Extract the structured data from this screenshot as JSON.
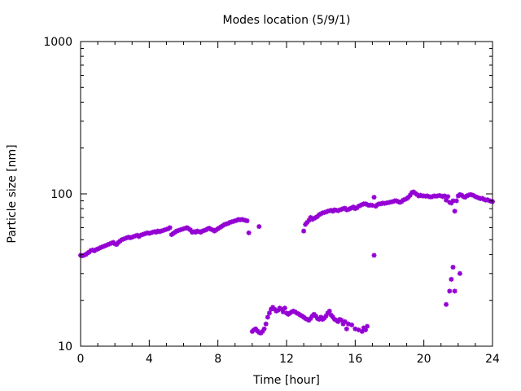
{
  "chart_data": {
    "type": "scatter",
    "title": "Modes location (5/9/1)",
    "xlabel": "Time [hour]",
    "ylabel": "Particle size [nm]",
    "xlim": [
      0,
      24
    ],
    "ylim": [
      10,
      1000
    ],
    "yscale": "log",
    "grid": false,
    "marker": "asterisk",
    "x_ticks": [
      0,
      4,
      8,
      12,
      16,
      20,
      24
    ],
    "x_tick_labels": [
      "0",
      "4",
      "8",
      "12",
      "16",
      "20",
      "24"
    ],
    "y_ticks": [
      10,
      100,
      1000
    ],
    "y_tick_labels": [
      "10",
      "100",
      "1000"
    ],
    "series": [
      {
        "color": "#9400d3",
        "points": [
          [
            0.0,
            39.5
          ],
          [
            0.1,
            39.2
          ],
          [
            0.2,
            39.6
          ],
          [
            0.3,
            40.0
          ],
          [
            0.4,
            40.8
          ],
          [
            0.5,
            41.5
          ],
          [
            0.6,
            42.5
          ],
          [
            0.7,
            42.8
          ],
          [
            0.8,
            42.3
          ],
          [
            0.9,
            43.0
          ],
          [
            1.0,
            43.5
          ],
          [
            1.1,
            44.0
          ],
          [
            1.2,
            44.6
          ],
          [
            1.3,
            45.0
          ],
          [
            1.4,
            45.5
          ],
          [
            1.5,
            46.0
          ],
          [
            1.6,
            46.5
          ],
          [
            1.7,
            47.0
          ],
          [
            1.8,
            47.5
          ],
          [
            1.9,
            48.0
          ],
          [
            2.0,
            47.0
          ],
          [
            2.1,
            46.5
          ],
          [
            2.2,
            48.0
          ],
          [
            2.3,
            49.0
          ],
          [
            2.4,
            50.0
          ],
          [
            2.5,
            50.5
          ],
          [
            2.6,
            51.0
          ],
          [
            2.7,
            51.5
          ],
          [
            2.8,
            52.0
          ],
          [
            2.9,
            51.5
          ],
          [
            3.0,
            52.0
          ],
          [
            3.1,
            52.5
          ],
          [
            3.2,
            53.0
          ],
          [
            3.3,
            53.5
          ],
          [
            3.4,
            52.5
          ],
          [
            3.5,
            53.5
          ],
          [
            3.6,
            54.0
          ],
          [
            3.7,
            54.5
          ],
          [
            3.8,
            55.0
          ],
          [
            3.9,
            55.5
          ],
          [
            4.0,
            55.0
          ],
          [
            4.1,
            55.5
          ],
          [
            4.2,
            56.0
          ],
          [
            4.3,
            56.5
          ],
          [
            4.4,
            56.0
          ],
          [
            4.5,
            57.0
          ],
          [
            4.6,
            56.5
          ],
          [
            4.7,
            57.0
          ],
          [
            4.8,
            57.5
          ],
          [
            4.9,
            58.0
          ],
          [
            5.0,
            58.5
          ],
          [
            5.1,
            59.0
          ],
          [
            5.2,
            60.0
          ],
          [
            5.3,
            54.0
          ],
          [
            5.4,
            55.0
          ],
          [
            5.5,
            56.0
          ],
          [
            5.6,
            57.0
          ],
          [
            5.7,
            57.5
          ],
          [
            5.8,
            58.0
          ],
          [
            5.9,
            58.5
          ],
          [
            6.0,
            59.0
          ],
          [
            6.1,
            59.5
          ],
          [
            6.2,
            60.0
          ],
          [
            6.3,
            59.0
          ],
          [
            6.4,
            58.0
          ],
          [
            6.5,
            56.0
          ],
          [
            6.6,
            56.5
          ],
          [
            6.7,
            56.0
          ],
          [
            6.8,
            57.0
          ],
          [
            6.9,
            56.5
          ],
          [
            7.0,
            56.0
          ],
          [
            7.1,
            57.0
          ],
          [
            7.2,
            57.5
          ],
          [
            7.3,
            58.0
          ],
          [
            7.4,
            59.0
          ],
          [
            7.5,
            59.5
          ],
          [
            7.6,
            58.5
          ],
          [
            7.7,
            58.0
          ],
          [
            7.8,
            57.0
          ],
          [
            7.9,
            58.0
          ],
          [
            8.0,
            59.0
          ],
          [
            8.1,
            60.0
          ],
          [
            8.2,
            61.0
          ],
          [
            8.3,
            62.0
          ],
          [
            8.4,
            63.0
          ],
          [
            8.5,
            63.5
          ],
          [
            8.6,
            64.0
          ],
          [
            8.7,
            65.0
          ],
          [
            8.8,
            65.5
          ],
          [
            8.9,
            66.0
          ],
          [
            9.0,
            66.5
          ],
          [
            9.1,
            67.0
          ],
          [
            9.2,
            68.0
          ],
          [
            9.3,
            67.5
          ],
          [
            9.4,
            68.0
          ],
          [
            9.5,
            67.5
          ],
          [
            9.6,
            67.0
          ],
          [
            9.7,
            66.5
          ],
          [
            9.8,
            55.5
          ],
          [
            10.4,
            61.0
          ],
          [
            10.0,
            12.5
          ],
          [
            10.1,
            12.8
          ],
          [
            10.2,
            13.0
          ],
          [
            10.3,
            12.6
          ],
          [
            10.4,
            12.3
          ],
          [
            10.5,
            12.2
          ],
          [
            10.6,
            12.5
          ],
          [
            10.7,
            13.0
          ],
          [
            10.8,
            14.0
          ],
          [
            10.9,
            15.5
          ],
          [
            11.0,
            16.5
          ],
          [
            11.1,
            17.5
          ],
          [
            11.2,
            18.0
          ],
          [
            11.3,
            17.5
          ],
          [
            11.4,
            17.0
          ],
          [
            11.5,
            17.2
          ],
          [
            11.6,
            17.8
          ],
          [
            11.7,
            17.5
          ],
          [
            11.8,
            16.8
          ],
          [
            11.9,
            17.8
          ],
          [
            12.0,
            16.5
          ],
          [
            12.1,
            16.2
          ],
          [
            12.2,
            16.5
          ],
          [
            12.3,
            16.8
          ],
          [
            12.4,
            17.0
          ],
          [
            12.5,
            16.8
          ],
          [
            12.6,
            16.5
          ],
          [
            12.7,
            16.3
          ],
          [
            12.8,
            16.0
          ],
          [
            12.9,
            15.8
          ],
          [
            13.0,
            15.5
          ],
          [
            13.1,
            15.2
          ],
          [
            13.2,
            15.0
          ],
          [
            13.3,
            14.8
          ],
          [
            13.4,
            15.2
          ],
          [
            13.5,
            15.8
          ],
          [
            13.6,
            16.2
          ],
          [
            13.7,
            15.8
          ],
          [
            13.8,
            15.2
          ],
          [
            13.9,
            15.0
          ],
          [
            14.0,
            15.5
          ],
          [
            14.1,
            15.0
          ],
          [
            14.2,
            15.3
          ],
          [
            14.3,
            15.8
          ],
          [
            14.4,
            16.5
          ],
          [
            14.5,
            17.0
          ],
          [
            14.6,
            16.0
          ],
          [
            14.7,
            15.5
          ],
          [
            14.8,
            15.0
          ],
          [
            14.9,
            14.8
          ],
          [
            15.0,
            14.5
          ],
          [
            15.1,
            15.0
          ],
          [
            15.2,
            14.8
          ],
          [
            15.3,
            14.0
          ],
          [
            15.4,
            14.5
          ],
          [
            15.5,
            13.0
          ],
          [
            15.6,
            14.0
          ],
          [
            15.8,
            13.8
          ],
          [
            16.0,
            13.0
          ],
          [
            16.2,
            12.8
          ],
          [
            16.4,
            12.5
          ],
          [
            16.5,
            13.2
          ],
          [
            16.6,
            12.8
          ],
          [
            16.7,
            13.5
          ],
          [
            13.0,
            57.0
          ],
          [
            13.1,
            63.0
          ],
          [
            13.2,
            65.0
          ],
          [
            13.3,
            67.0
          ],
          [
            13.4,
            70.0
          ],
          [
            13.5,
            68.0
          ],
          [
            13.6,
            69.0
          ],
          [
            13.7,
            70.0
          ],
          [
            13.8,
            71.0
          ],
          [
            13.9,
            73.0
          ],
          [
            14.0,
            74.0
          ],
          [
            14.1,
            75.0
          ],
          [
            14.2,
            75.5
          ],
          [
            14.3,
            76.0
          ],
          [
            14.4,
            77.0
          ],
          [
            14.5,
            77.5
          ],
          [
            14.6,
            78.0
          ],
          [
            14.7,
            77.0
          ],
          [
            14.8,
            78.5
          ],
          [
            14.9,
            78.0
          ],
          [
            15.0,
            77.5
          ],
          [
            15.1,
            78.5
          ],
          [
            15.2,
            79.0
          ],
          [
            15.3,
            80.0
          ],
          [
            15.4,
            80.5
          ],
          [
            15.5,
            78.5
          ],
          [
            15.6,
            79.0
          ],
          [
            15.7,
            80.0
          ],
          [
            15.8,
            81.0
          ],
          [
            15.9,
            82.0
          ],
          [
            16.0,
            80.0
          ],
          [
            16.1,
            81.0
          ],
          [
            16.2,
            83.0
          ],
          [
            16.3,
            84.0
          ],
          [
            16.4,
            85.0
          ],
          [
            16.5,
            86.0
          ],
          [
            16.6,
            86.0
          ],
          [
            16.7,
            85.0
          ],
          [
            16.8,
            84.0
          ],
          [
            16.9,
            84.5
          ],
          [
            17.0,
            84.0
          ],
          [
            17.1,
            95.0
          ],
          [
            17.2,
            83.0
          ],
          [
            17.3,
            85.0
          ],
          [
            17.4,
            86.0
          ],
          [
            17.5,
            86.0
          ],
          [
            17.6,
            87.0
          ],
          [
            17.7,
            86.5
          ],
          [
            17.8,
            87.0
          ],
          [
            17.9,
            87.5
          ],
          [
            18.0,
            88.0
          ],
          [
            18.1,
            88.5
          ],
          [
            18.2,
            89.0
          ],
          [
            18.3,
            90.0
          ],
          [
            18.4,
            90.0
          ],
          [
            18.5,
            89.0
          ],
          [
            18.6,
            88.0
          ],
          [
            18.7,
            89.0
          ],
          [
            18.8,
            91.0
          ],
          [
            18.9,
            92.0
          ],
          [
            19.0,
            93.0
          ],
          [
            19.1,
            95.0
          ],
          [
            19.2,
            98.0
          ],
          [
            19.3,
            102.0
          ],
          [
            19.4,
            103.0
          ],
          [
            19.5,
            101.0
          ],
          [
            19.6,
            99.0
          ],
          [
            19.7,
            97.0
          ],
          [
            19.8,
            98.0
          ],
          [
            19.9,
            97.0
          ],
          [
            20.0,
            97.0
          ],
          [
            20.1,
            96.5
          ],
          [
            20.2,
            97.0
          ],
          [
            20.3,
            96.0
          ],
          [
            20.4,
            95.5
          ],
          [
            20.5,
            96.0
          ],
          [
            20.6,
            97.0
          ],
          [
            20.7,
            96.5
          ],
          [
            20.8,
            97.0
          ],
          [
            20.9,
            97.5
          ],
          [
            21.0,
            97.0
          ],
          [
            21.1,
            96.0
          ],
          [
            21.2,
            97.0
          ],
          [
            21.3,
            91.0
          ],
          [
            21.4,
            96.0
          ],
          [
            21.5,
            88.0
          ],
          [
            21.6,
            87.0
          ],
          [
            21.7,
            90.0
          ],
          [
            21.8,
            77.0
          ],
          [
            21.9,
            90.0
          ],
          [
            22.0,
            97.0
          ],
          [
            22.1,
            99.0
          ],
          [
            22.2,
            98.0
          ],
          [
            22.3,
            96.0
          ],
          [
            22.4,
            95.0
          ],
          [
            22.5,
            97.0
          ],
          [
            22.6,
            98.0
          ],
          [
            22.7,
            99.0
          ],
          [
            22.8,
            98.5
          ],
          [
            22.9,
            97.5
          ],
          [
            23.0,
            96.0
          ],
          [
            23.1,
            95.0
          ],
          [
            23.2,
            94.0
          ],
          [
            23.3,
            93.0
          ],
          [
            23.4,
            93.5
          ],
          [
            23.5,
            92.0
          ],
          [
            23.6,
            91.0
          ],
          [
            23.7,
            91.5
          ],
          [
            23.8,
            90.5
          ],
          [
            23.9,
            89.5
          ],
          [
            24.0,
            89.0
          ],
          [
            17.1,
            39.5
          ],
          [
            21.3,
            18.8
          ],
          [
            21.5,
            23.0
          ],
          [
            21.6,
            27.5
          ],
          [
            21.7,
            33.0
          ],
          [
            21.8,
            23.0
          ],
          [
            22.1,
            30.0
          ]
        ]
      }
    ]
  }
}
